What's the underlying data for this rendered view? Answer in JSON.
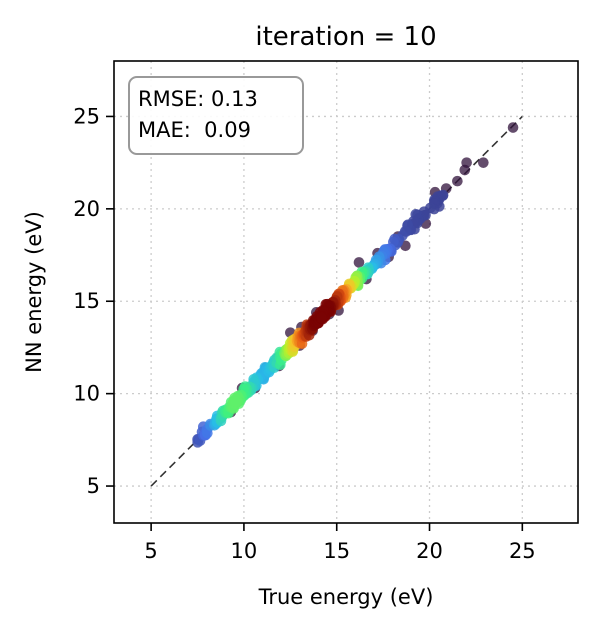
{
  "chart_data": {
    "type": "scatter",
    "title": "iteration = 10",
    "xlabel": "True energy (eV)",
    "ylabel": "NN energy (eV)",
    "xlim": [
      3,
      28
    ],
    "ylim": [
      3,
      28
    ],
    "xticks": [
      "5",
      "10",
      "15",
      "20",
      "25"
    ],
    "yticks": [
      "5",
      "10",
      "15",
      "20",
      "25"
    ],
    "grid": true,
    "stats": {
      "rmse_label": "RMSE: 0.13",
      "mae_label": "MAE:  0.09",
      "placement": "top-left"
    },
    "reference_line": {
      "style": "dashed",
      "from": [
        5,
        5
      ],
      "to": [
        25,
        25
      ]
    },
    "colormap": "jet (point density)",
    "colors": {
      "low_density": "#30123b",
      "high_density": "#7a0403",
      "reference_line": "#333333",
      "grid": "#cccccc"
    },
    "points_dense_band": {
      "x_range": [
        7.5,
        21
      ],
      "typical_abs_error": 0.09
    },
    "outliers": [
      {
        "x": 24.5,
        "y": 24.4
      },
      {
        "x": 22.9,
        "y": 22.5
      },
      {
        "x": 22.0,
        "y": 22.5
      },
      {
        "x": 21.9,
        "y": 22.1
      },
      {
        "x": 21.5,
        "y": 21.5
      },
      {
        "x": 20.9,
        "y": 21.1
      },
      {
        "x": 20.3,
        "y": 20.9
      },
      {
        "x": 19.8,
        "y": 19.2
      },
      {
        "x": 18.7,
        "y": 18.0
      },
      {
        "x": 18.3,
        "y": 18.5
      },
      {
        "x": 17.8,
        "y": 17.4
      },
      {
        "x": 17.2,
        "y": 17.6
      },
      {
        "x": 16.6,
        "y": 16.2
      },
      {
        "x": 16.2,
        "y": 17.1
      },
      {
        "x": 15.1,
        "y": 14.5
      },
      {
        "x": 14.6,
        "y": 14.3
      },
      {
        "x": 13.7,
        "y": 13.4
      },
      {
        "x": 13.9,
        "y": 14.4
      },
      {
        "x": 13.1,
        "y": 13.6
      },
      {
        "x": 13.0,
        "y": 12.6
      },
      {
        "x": 12.5,
        "y": 13.3
      },
      {
        "x": 11.8,
        "y": 11.9
      },
      {
        "x": 11.9,
        "y": 11.5
      },
      {
        "x": 11.2,
        "y": 11.4
      },
      {
        "x": 10.6,
        "y": 10.3
      },
      {
        "x": 9.9,
        "y": 10.3
      },
      {
        "x": 9.3,
        "y": 9.0
      }
    ]
  }
}
